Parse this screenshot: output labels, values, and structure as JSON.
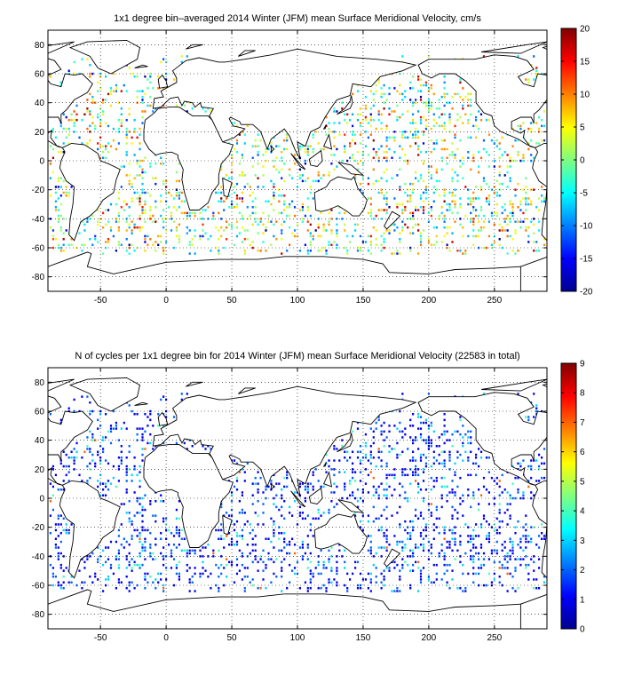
{
  "chart_data": [
    {
      "type": "heatmap",
      "title": "1x1 degree bin–averaged 2014 Winter (JFM) mean Surface Meridional Velocity, cm/s",
      "xlabel": "",
      "ylabel": "",
      "xlim": [
        -90,
        290
      ],
      "ylim": [
        -90,
        90
      ],
      "x_ticks": [
        -50,
        0,
        50,
        100,
        150,
        200,
        250
      ],
      "y_ticks": [
        80,
        60,
        40,
        20,
        0,
        -20,
        -40,
        -60,
        -80
      ],
      "grid": true,
      "colorbar": {
        "min": -20,
        "max": 20,
        "ticks": [
          20,
          15,
          10,
          5,
          0,
          -5,
          -10,
          -15,
          -20
        ],
        "colormap": "jet",
        "placement": "right"
      },
      "data_description": "scattered 1x1 degree ocean bins, values roughly between -20 and 20"
    },
    {
      "type": "heatmap",
      "title": "N of cycles per 1x1 degree bin for 2014 Winter (JFM) mean Surface Meridional Velocity (22583 in total)",
      "xlabel": "",
      "ylabel": "",
      "xlim": [
        -90,
        290
      ],
      "ylim": [
        -90,
        90
      ],
      "x_ticks": [
        -50,
        0,
        50,
        100,
        150,
        200,
        250
      ],
      "y_ticks": [
        80,
        60,
        40,
        20,
        0,
        -20,
        -40,
        -60,
        -80
      ],
      "grid": true,
      "colorbar": {
        "min": 0,
        "max": 9,
        "ticks": [
          9,
          8,
          7,
          6,
          5,
          4,
          3,
          2,
          1,
          0
        ],
        "colormap": "jet",
        "placement": "right"
      },
      "total_count": 22583,
      "data_description": "scattered 1x1 degree ocean bins, counts mostly 1-3"
    }
  ],
  "colors": {
    "axes": "#000000",
    "grid": "#000000",
    "coast": "#000000",
    "background": "#ffffff"
  }
}
